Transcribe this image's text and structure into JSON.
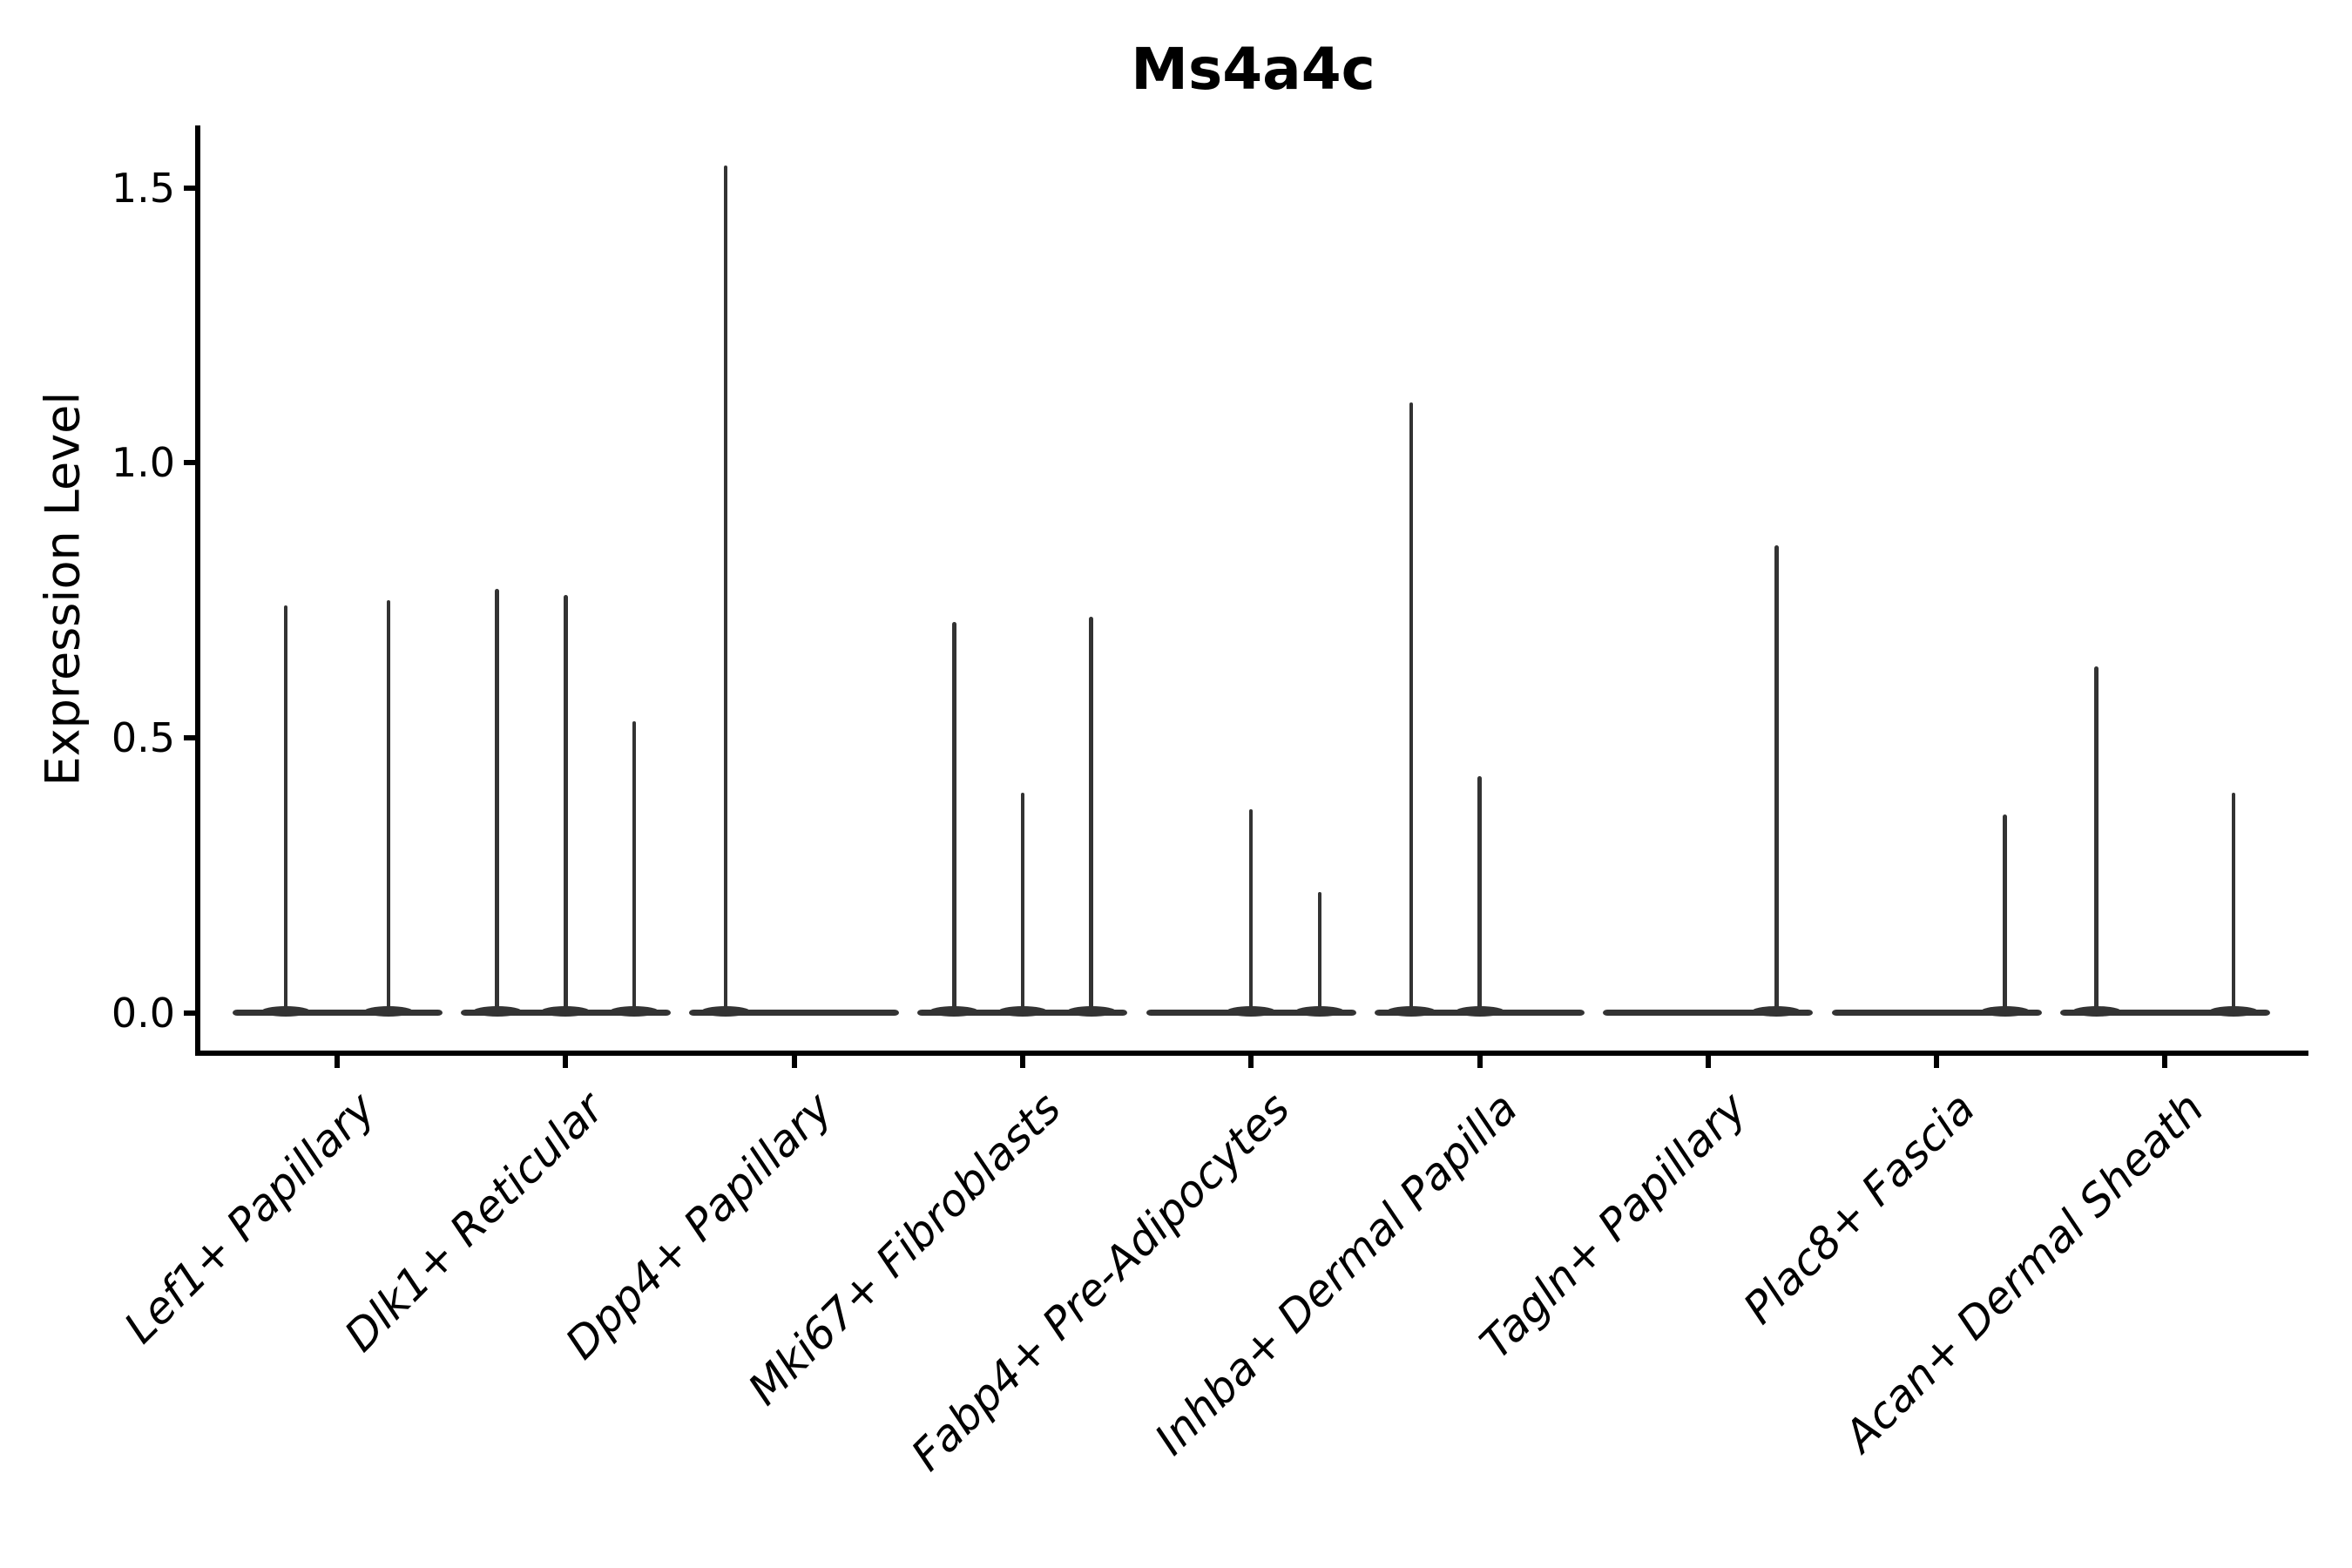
{
  "figure": {
    "title": "Ms4a4c",
    "background_color": "#ffffff",
    "violin_color": "#333333",
    "axis_color": "#000000",
    "text_color": "#000000"
  },
  "chart_data": {
    "type": "violin",
    "title": "Ms4a4c",
    "xlabel": "",
    "ylabel": "Expression Level",
    "yticks": [
      0.0,
      0.5,
      1.0,
      1.5
    ],
    "ytick_labels": [
      "0.0",
      "0.5",
      "1.0",
      "1.5"
    ],
    "ylim": [
      -0.07,
      1.61
    ],
    "grid": false,
    "legend": "none",
    "violin_body_width": 0.9,
    "note": "Zero-inflated expression: each cell type shows grouped violins collapsed to a flat bar at 0 with thin density spikes reaching the maximum expression of each subgroup; spike offset is the horizontal position within the category in category-width units.",
    "categories": [
      "Lef1+ Papillary",
      "Dlk1+ Reticular",
      "Dpp4+ Papillary",
      "Mki67+ Fibroblasts",
      "Fabp4+ Pre-Adipocytes",
      "Inhba+ Dermal Papilla",
      "Tagln+ Papillary",
      "Plac8+ Fascia",
      "Acan+ Dermal Sheath"
    ],
    "series": [
      {
        "category": "Lef1+ Papillary",
        "spikes": [
          {
            "offset": -0.225,
            "max": 0.74
          },
          {
            "offset": 0.225,
            "max": 0.75
          }
        ]
      },
      {
        "category": "Dlk1+ Reticular",
        "spikes": [
          {
            "offset": -0.3,
            "max": 0.77
          },
          {
            "offset": 0.0,
            "max": 0.76
          },
          {
            "offset": 0.3,
            "max": 0.53
          }
        ]
      },
      {
        "category": "Dpp4+ Papillary",
        "spikes": [
          {
            "offset": -0.3,
            "max": 1.54
          }
        ]
      },
      {
        "category": "Mki67+ Fibroblasts",
        "spikes": [
          {
            "offset": -0.3,
            "max": 0.71
          },
          {
            "offset": 0.0,
            "max": 0.4
          },
          {
            "offset": 0.3,
            "max": 0.72
          }
        ]
      },
      {
        "category": "Fabp4+ Pre-Adipocytes",
        "spikes": [
          {
            "offset": 0.0,
            "max": 0.37
          },
          {
            "offset": 0.3,
            "max": 0.22
          }
        ]
      },
      {
        "category": "Inhba+ Dermal Papilla",
        "spikes": [
          {
            "offset": -0.3,
            "max": 1.11
          },
          {
            "offset": 0.0,
            "max": 0.43
          }
        ]
      },
      {
        "category": "Tagln+ Papillary",
        "spikes": [
          {
            "offset": 0.3,
            "max": 0.85
          }
        ]
      },
      {
        "category": "Plac8+ Fascia",
        "spikes": [
          {
            "offset": 0.3,
            "max": 0.36
          }
        ]
      },
      {
        "category": "Acan+ Dermal Sheath",
        "spikes": [
          {
            "offset": -0.3,
            "max": 0.63
          },
          {
            "offset": 0.3,
            "max": 0.4
          }
        ]
      }
    ]
  }
}
